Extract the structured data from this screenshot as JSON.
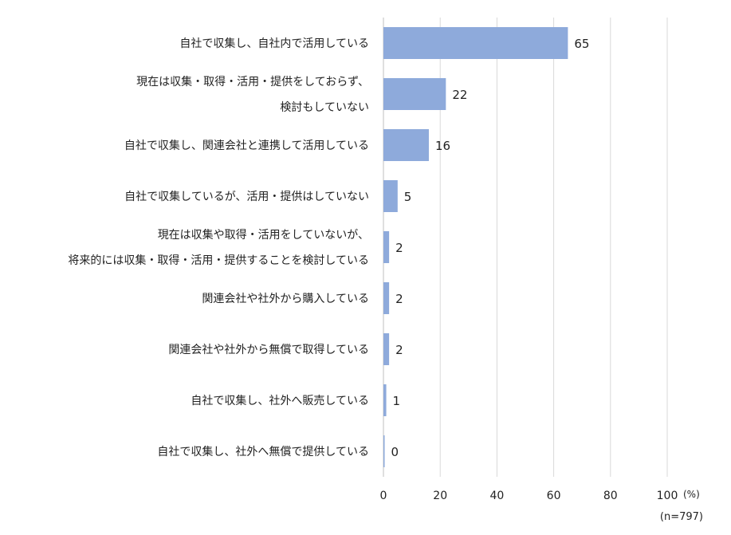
{
  "chart_data": {
    "type": "bar",
    "orientation": "horizontal",
    "categories": [
      [
        "自社で収集し、自社内で活用している"
      ],
      [
        "現在は収集・取得・活用・提供をしておらず、",
        "検討もしていない"
      ],
      [
        "自社で収集し、関連会社と連携して活用している"
      ],
      [
        "自社で収集しているが、活用・提供はしていない"
      ],
      [
        "現在は収集や取得・活用をしていないが、",
        "将来的には収集・取得・活用・提供することを検討している"
      ],
      [
        "関連会社や社外から購入している"
      ],
      [
        "関連会社や社外から無償で取得している"
      ],
      [
        "自社で収集し、社外へ販売している"
      ],
      [
        "自社で収集し、社外へ無償で提供している"
      ]
    ],
    "values": [
      65,
      22,
      16,
      5,
      2,
      2,
      2,
      1,
      0
    ],
    "value_labels": [
      "65",
      "22",
      "16",
      "5",
      "2",
      "2",
      "2",
      "1",
      "0"
    ],
    "x_ticks": [
      "0",
      "20",
      "40",
      "60",
      "80",
      "100"
    ],
    "xlim": [
      0,
      100
    ],
    "x_unit": "(%)",
    "note": "(n=797)",
    "bar_color": "#8eaadb",
    "grid": true
  }
}
